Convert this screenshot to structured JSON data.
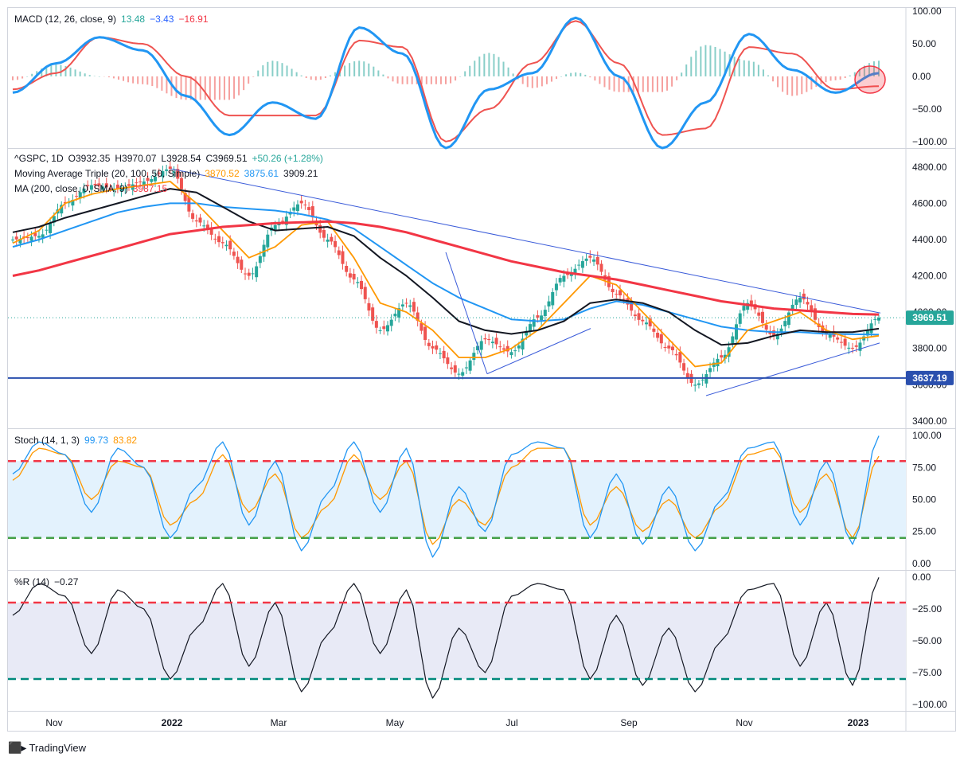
{
  "chart_data": {
    "type": "line",
    "symbol": "^GSPC",
    "interval": "1D",
    "ohlc": {
      "open": "O3932.35",
      "high": "H3970.07",
      "low": "L3928.54",
      "close": "C3969.51",
      "change": "+50.26 (+1.28%)"
    },
    "x_axis": {
      "labels": [
        "Nov",
        "2022",
        "Mar",
        "May",
        "Jul",
        "Sep",
        "Nov",
        "2023"
      ]
    },
    "panes": {
      "macd": {
        "title": "MACD (12, 26, close, 9)",
        "values": [
          "13.48",
          "−3.43",
          "−16.91"
        ],
        "value_colors": [
          "#26a69a",
          "#2962ff",
          "#f23645"
        ],
        "ticks": [
          "100.00",
          "50.00",
          "0.00",
          "−50.00",
          "−100.00"
        ],
        "ylim": [
          -110,
          105
        ],
        "macd_line": [
          -25,
          20,
          60,
          40,
          -30,
          -90,
          -40,
          -65,
          75,
          35,
          -110,
          -20,
          5,
          90,
          0,
          -110,
          -40,
          65,
          10,
          -25,
          5
        ],
        "signal_line": [
          -20,
          5,
          60,
          50,
          0,
          -60,
          -60,
          -60,
          55,
          45,
          -100,
          -50,
          20,
          85,
          20,
          -90,
          -80,
          45,
          35,
          -20,
          -15
        ],
        "colors": {
          "macd": "#2196f3",
          "signal": "#ef5350",
          "hist_up": "#26a69a",
          "hist_down": "#ef5350"
        }
      },
      "price": {
        "lines": [
          {
            "text": "Moving Average Triple (20, 100, 50, Simple)",
            "values": [
              "3870.52",
              "3875.61",
              "3909.21"
            ],
            "value_colors": [
              "#ff9800",
              "#2196f3",
              "#131722"
            ]
          },
          {
            "text": "MA (200, close, 0, SMA, 9)",
            "values": [
              "3987.15"
            ],
            "value_colors": [
              "#f23645"
            ]
          }
        ],
        "ticks": [
          "4800.00",
          "4600.00",
          "4400.00",
          "4200.00",
          "4000.00",
          "3800.00",
          "3600.00",
          "3400.00"
        ],
        "ylim": [
          3360,
          4900
        ],
        "last_price": "3969.51",
        "support_level": "3637.19",
        "close": [
          4400,
          4420,
          4600,
          4700,
          4680,
          4720,
          4790,
          4500,
          4380,
          4200,
          4480,
          4600,
          4400,
          4180,
          3900,
          4050,
          3800,
          3660,
          3850,
          3780,
          3970,
          4200,
          4300,
          4100,
          3950,
          3800,
          3600,
          3750,
          4050,
          3870,
          4080,
          3880,
          3800,
          3970
        ],
        "sma20": [
          4380,
          4450,
          4600,
          4650,
          4680,
          4700,
          4720,
          4600,
          4450,
          4300,
          4360,
          4480,
          4500,
          4300,
          4050,
          4000,
          3900,
          3750,
          3750,
          3800,
          3900,
          4050,
          4200,
          4150,
          4000,
          3850,
          3700,
          3720,
          3900,
          3950,
          4000,
          3900,
          3850,
          3870
        ],
        "sma50": [
          4440,
          4470,
          4520,
          4560,
          4600,
          4640,
          4680,
          4660,
          4580,
          4500,
          4450,
          4460,
          4470,
          4420,
          4300,
          4200,
          4080,
          3950,
          3900,
          3880,
          3900,
          3950,
          4050,
          4070,
          4050,
          4000,
          3900,
          3820,
          3830,
          3870,
          3900,
          3890,
          3890,
          3909
        ],
        "sma100": [
          4360,
          4400,
          4450,
          4500,
          4550,
          4580,
          4600,
          4600,
          4580,
          4570,
          4560,
          4540,
          4510,
          4460,
          4360,
          4260,
          4160,
          4080,
          4020,
          3960,
          3950,
          3960,
          4020,
          4060,
          4040,
          4000,
          3960,
          3920,
          3900,
          3890,
          3890,
          3880,
          3878,
          3876
        ],
        "sma200": [
          4200,
          4230,
          4270,
          4310,
          4350,
          4390,
          4430,
          4450,
          4470,
          4480,
          4490,
          4495,
          4500,
          4490,
          4470,
          4440,
          4400,
          4360,
          4320,
          4280,
          4250,
          4220,
          4200,
          4180,
          4150,
          4120,
          4090,
          4060,
          4040,
          4020,
          4010,
          4000,
          3990,
          3987
        ],
        "colors": {
          "up": "#26a69a",
          "down": "#ef5350",
          "sma20": "#ff9800",
          "sma50": "#131722",
          "sma100": "#2196f3",
          "sma200": "#f23645",
          "trend": "#3a5bd9",
          "support": "#2a4fae"
        }
      },
      "stoch": {
        "title": "Stoch (14, 1, 3)",
        "values": [
          "99.73",
          "83.82"
        ],
        "value_colors": [
          "#2196f3",
          "#ff9800"
        ],
        "ticks": [
          "100.00",
          "75.00",
          "50.00",
          "25.00",
          "0.00"
        ],
        "ylim": [
          -5,
          105
        ],
        "upper": 80,
        "lower": 20,
        "k": [
          70,
          95,
          85,
          40,
          90,
          75,
          20,
          60,
          95,
          30,
          80,
          10,
          55,
          95,
          40,
          90,
          5,
          60,
          25,
          85,
          95,
          90,
          20,
          70,
          15,
          60,
          10,
          50,
          90,
          95,
          30,
          80,
          15,
          99.73
        ],
        "d": [
          65,
          90,
          85,
          50,
          80,
          75,
          30,
          50,
          85,
          40,
          70,
          20,
          45,
          85,
          50,
          80,
          15,
          50,
          30,
          75,
          90,
          90,
          30,
          60,
          25,
          50,
          20,
          45,
          85,
          90,
          40,
          70,
          20,
          83.82
        ],
        "colors": {
          "k": "#2196f3",
          "d": "#ff9800",
          "upper": "#f23645",
          "lower": "#43a047",
          "band": "#e3f2fd"
        }
      },
      "williams": {
        "title": "%R (14)",
        "values": [
          "−0.27"
        ],
        "value_colors": [
          "#131722"
        ],
        "ticks": [
          "0.00",
          "−25.00",
          "−50.00",
          "−75.00",
          "−100.00"
        ],
        "ylim": [
          -105,
          5
        ],
        "upper": -20,
        "lower": -80,
        "r": [
          -30,
          -5,
          -15,
          -60,
          -10,
          -25,
          -80,
          -40,
          -5,
          -70,
          -20,
          -90,
          -45,
          -5,
          -60,
          -10,
          -95,
          -40,
          -75,
          -15,
          -5,
          -10,
          -80,
          -30,
          -85,
          -40,
          -90,
          -50,
          -10,
          -5,
          -70,
          -20,
          -85,
          -0.27
        ],
        "colors": {
          "r": "#131722",
          "upper": "#f23645",
          "lower": "#00897b",
          "band": "#e8eaf6"
        }
      }
    }
  },
  "footer": {
    "brand": "TradingView"
  }
}
